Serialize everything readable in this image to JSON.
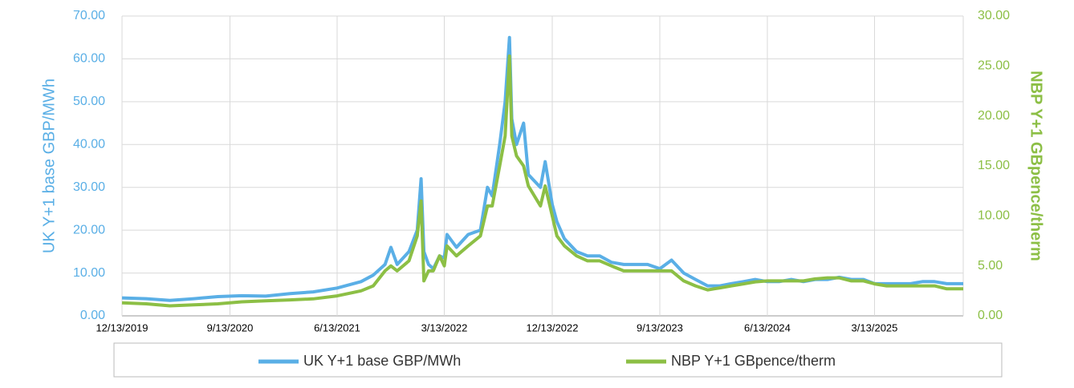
{
  "chart_data": {
    "type": "line",
    "x": [
      "12/13/2019",
      "2/13/2020",
      "4/13/2020",
      "6/13/2020",
      "8/13/2020",
      "10/13/2020",
      "12/13/2020",
      "2/13/2021",
      "4/13/2021",
      "6/13/2021",
      "8/13/2021",
      "9/13/2021",
      "10/13/2021",
      "10/28/2021",
      "11/13/2021",
      "12/13/2021",
      "1/3/2022",
      "1/13/2022",
      "1/20/2022",
      "2/1/2022",
      "2/13/2022",
      "3/1/2022",
      "3/13/2022",
      "3/20/2022",
      "4/13/2022",
      "5/13/2022",
      "6/13/2022",
      "7/1/2022",
      "7/13/2022",
      "8/1/2022",
      "8/15/2022",
      "8/26/2022",
      "9/1/2022",
      "9/13/2022",
      "10/1/2022",
      "10/13/2022",
      "11/13/2022",
      "11/25/2022",
      "12/13/2022",
      "12/25/2022",
      "1/13/2023",
      "2/13/2023",
      "3/13/2023",
      "4/13/2023",
      "5/13/2023",
      "6/13/2023",
      "7/13/2023",
      "8/13/2023",
      "9/13/2023",
      "10/13/2023",
      "11/13/2023",
      "12/13/2023",
      "1/13/2024",
      "2/13/2024",
      "3/13/2024",
      "4/13/2024",
      "5/13/2024",
      "6/13/2024",
      "7/13/2024",
      "8/13/2024",
      "9/13/2024",
      "10/13/2024",
      "11/13/2024",
      "12/13/2024",
      "1/13/2025",
      "2/13/2025",
      "3/13/2025",
      "4/13/2025",
      "5/13/2025",
      "6/13/2025",
      "7/13/2025",
      "8/13/2025",
      "9/13/2025",
      "10/25/2025"
    ],
    "series": [
      {
        "name": "UK Y+1 base GBP/MWh",
        "color": "#5aafe6",
        "axis": "y",
        "values": [
          4.2,
          4.0,
          3.6,
          4.0,
          4.5,
          4.7,
          4.6,
          5.2,
          5.6,
          6.5,
          8.0,
          9.5,
          12,
          16,
          12,
          15,
          20,
          32,
          15,
          12,
          11,
          14,
          13.5,
          19,
          16,
          19,
          20,
          30,
          28,
          40,
          50,
          65,
          46,
          40,
          45,
          33,
          30,
          36,
          26,
          22,
          18,
          15,
          14,
          14,
          12.5,
          12,
          12,
          12,
          11,
          13,
          10,
          8.5,
          7,
          7,
          7.5,
          8,
          8.5,
          8,
          8,
          8.5,
          8,
          8.5,
          8.5,
          9,
          8.5,
          8.5,
          7.5,
          7.5,
          7.5,
          7.5,
          8,
          8,
          7.5,
          7.5
        ]
      },
      {
        "name": "NBP Y+1 GBpence/therm",
        "color": "#8cbf45",
        "axis": "y2",
        "values": [
          1.3,
          1.2,
          1.0,
          1.1,
          1.2,
          1.4,
          1.5,
          1.6,
          1.7,
          2.0,
          2.5,
          3.0,
          4.5,
          5.0,
          4.5,
          5.5,
          8,
          11.5,
          3.5,
          4.5,
          4.5,
          6,
          5,
          7,
          6,
          7,
          8,
          11,
          11,
          15,
          18,
          26,
          18,
          16,
          15,
          13,
          11,
          13,
          10,
          8,
          7,
          6,
          5.5,
          5.5,
          5,
          4.5,
          4.5,
          4.5,
          4.5,
          4.5,
          3.5,
          3,
          2.6,
          2.8,
          3,
          3.2,
          3.4,
          3.5,
          3.5,
          3.5,
          3.5,
          3.7,
          3.8,
          3.8,
          3.5,
          3.5,
          3.2,
          3.0,
          3.0,
          3.0,
          3.0,
          3.0,
          2.7,
          2.7
        ]
      }
    ],
    "y_label": "UK Y+1 base GBP/MWh",
    "y2_label": "NBP Y+1 GBpence/therm",
    "xlim": [
      "12/13/2019",
      "10/25/2025"
    ],
    "xticks": [
      "12/13/2019",
      "9/13/2020",
      "6/13/2021",
      "3/13/2022",
      "12/13/2022",
      "9/13/2023",
      "6/13/2024",
      "3/13/2025"
    ],
    "ylim": [
      0,
      70
    ],
    "yticks": [
      {
        "value": 0,
        "label": "0.00"
      },
      {
        "value": 10,
        "label": "10.00"
      },
      {
        "value": 20,
        "label": "20.00"
      },
      {
        "value": 30,
        "label": "30.00"
      },
      {
        "value": 40,
        "label": "40.00"
      },
      {
        "value": 50,
        "label": "50.00"
      },
      {
        "value": 60,
        "label": "60.00"
      },
      {
        "value": 70,
        "label": "70.00"
      }
    ],
    "y2lim": [
      0,
      30
    ],
    "y2ticks": [
      {
        "value": 0,
        "label": "0.00"
      },
      {
        "value": 5,
        "label": "5.00"
      },
      {
        "value": 10,
        "label": "10.00"
      },
      {
        "value": 15,
        "label": "15.00"
      },
      {
        "value": 20,
        "label": "20.00"
      },
      {
        "value": 25,
        "label": "25.00"
      },
      {
        "value": 30,
        "label": "30.00"
      }
    ],
    "grid": true,
    "legend": "bottom"
  }
}
